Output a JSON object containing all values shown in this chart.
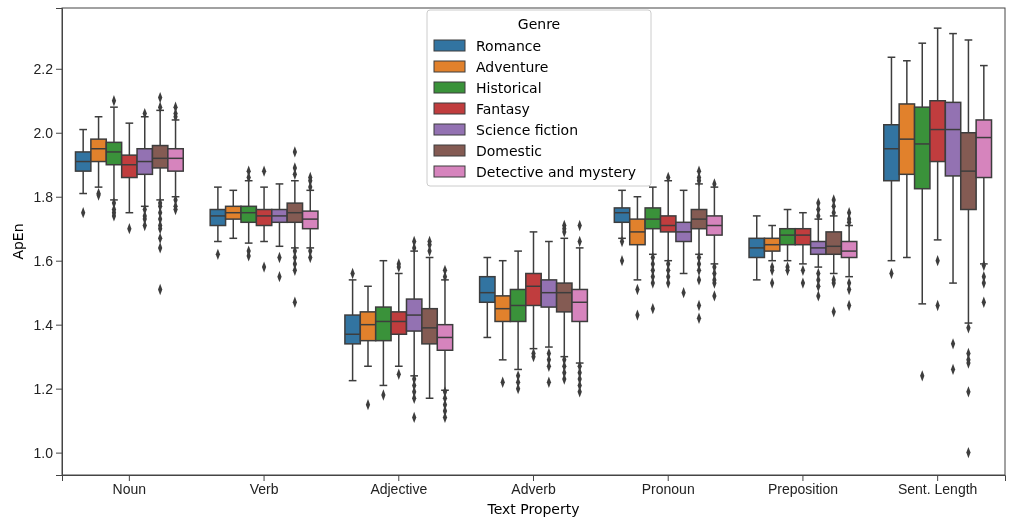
{
  "chart_data": {
    "type": "box",
    "xlabel": "Text Property",
    "ylabel": "ApEn",
    "legend_title": "Genre",
    "legend": "top",
    "marker": "diamond",
    "grid": false,
    "ylim": [
      0.93,
      2.39
    ],
    "yticks": [
      {
        "value": 1,
        "label": "1.0"
      },
      1.2,
      1.4,
      1.6,
      1.8,
      {
        "value": 2,
        "label": "2.0"
      },
      2.2
    ],
    "categories": [
      "Noun",
      "Verb",
      "Adjective",
      "Adverb",
      "Pronoun",
      "Preposition",
      "Sent. Length"
    ],
    "series": [
      {
        "name": "Romance",
        "color": "#3274a1",
        "boxes": [
          {
            "low": 1.81,
            "q1": 1.88,
            "median": 1.91,
            "q3": 1.94,
            "high": 2.01,
            "outliers": [
              1.75
            ]
          },
          {
            "low": 1.66,
            "q1": 1.71,
            "median": 1.74,
            "q3": 1.76,
            "high": 1.83,
            "outliers": [
              1.62
            ]
          },
          {
            "low": 1.225,
            "q1": 1.34,
            "median": 1.37,
            "q3": 1.43,
            "high": 1.54,
            "outliers": [
              1.56
            ]
          },
          {
            "low": 1.36,
            "q1": 1.47,
            "median": 1.5,
            "q3": 1.55,
            "high": 1.61
          },
          {
            "low": 1.67,
            "q1": 1.72,
            "median": 1.75,
            "q3": 1.765,
            "high": 1.82,
            "outliers": [
              1.66,
              1.6
            ]
          },
          {
            "low": 1.54,
            "q1": 1.61,
            "median": 1.64,
            "q3": 1.67,
            "high": 1.74
          },
          {
            "low": 1.6,
            "q1": 1.85,
            "median": 1.95,
            "q3": 2.025,
            "high": 2.236,
            "outliers": [
              1.56
            ]
          }
        ]
      },
      {
        "name": "Adventure",
        "color": "#e1812c",
        "boxes": [
          {
            "low": 1.83,
            "q1": 1.91,
            "median": 1.95,
            "q3": 1.98,
            "high": 2.05,
            "outliers": [
              1.81,
              1.805
            ]
          },
          {
            "low": 1.67,
            "q1": 1.73,
            "median": 1.75,
            "q3": 1.77,
            "high": 1.82
          },
          {
            "low": 1.27,
            "q1": 1.35,
            "median": 1.4,
            "q3": 1.44,
            "high": 1.52,
            "outliers": [
              1.15
            ]
          },
          {
            "low": 1.29,
            "q1": 1.41,
            "median": 1.45,
            "q3": 1.49,
            "high": 1.6,
            "outliers": [
              1.22
            ]
          },
          {
            "low": 1.54,
            "q1": 1.65,
            "median": 1.69,
            "q3": 1.73,
            "high": 1.8,
            "outliers": [
              1.51,
              1.43
            ]
          },
          {
            "low": 1.6,
            "q1": 1.63,
            "median": 1.65,
            "q3": 1.67,
            "high": 1.71,
            "outliers": [
              1.58,
              1.57,
              1.53
            ]
          },
          {
            "low": 1.61,
            "q1": 1.87,
            "median": 1.98,
            "q3": 2.09,
            "high": 2.225
          }
        ]
      },
      {
        "name": "Historical",
        "color": "#3a923a",
        "boxes": [
          {
            "low": 1.79,
            "q1": 1.9,
            "median": 1.94,
            "q3": 1.97,
            "high": 2.08,
            "outliers": [
              2.1,
              1.78,
              1.76,
              1.75,
              1.74
            ]
          },
          {
            "low": 1.655,
            "q1": 1.72,
            "median": 1.75,
            "q3": 1.77,
            "high": 1.85,
            "outliers": [
              1.88,
              1.86,
              1.63,
              1.615
            ]
          },
          {
            "low": 1.21,
            "q1": 1.35,
            "median": 1.41,
            "q3": 1.455,
            "high": 1.6,
            "outliers": [
              1.18
            ]
          },
          {
            "low": 1.26,
            "q1": 1.41,
            "median": 1.46,
            "q3": 1.51,
            "high": 1.63,
            "outliers": [
              1.24,
              1.22,
              1.2
            ]
          },
          {
            "low": 1.62,
            "q1": 1.7,
            "median": 1.73,
            "q3": 1.765,
            "high": 1.83,
            "outliers": [
              1.61,
              1.59,
              1.57,
              1.55,
              1.53,
              1.45
            ]
          },
          {
            "low": 1.6,
            "q1": 1.65,
            "median": 1.68,
            "q3": 1.7,
            "high": 1.76,
            "outliers": [
              1.58,
              1.57
            ]
          },
          {
            "low": 1.465,
            "q1": 1.825,
            "median": 1.965,
            "q3": 2.08,
            "high": 2.28,
            "outliers": [
              1.24
            ]
          }
        ]
      },
      {
        "name": "Fantasy",
        "color": "#c03d3e",
        "boxes": [
          {
            "low": 1.75,
            "q1": 1.86,
            "median": 1.9,
            "q3": 1.93,
            "high": 2.03,
            "outliers": [
              1.7
            ]
          },
          {
            "low": 1.66,
            "q1": 1.71,
            "median": 1.74,
            "q3": 1.76,
            "high": 1.83,
            "outliers": [
              1.88,
              1.58
            ]
          },
          {
            "low": 1.27,
            "q1": 1.37,
            "median": 1.41,
            "q3": 1.44,
            "high": 1.56,
            "outliers": [
              1.59,
              1.58,
              1.245
            ]
          },
          {
            "low": 1.325,
            "q1": 1.46,
            "median": 1.52,
            "q3": 1.56,
            "high": 1.69,
            "outliers": [
              1.31,
              1.3
            ]
          },
          {
            "low": 1.6,
            "q1": 1.69,
            "median": 1.71,
            "q3": 1.74,
            "high": 1.85,
            "outliers": [
              1.86,
              1.59,
              1.57,
              1.55,
              1.53
            ]
          },
          {
            "low": 1.59,
            "q1": 1.65,
            "median": 1.68,
            "q3": 1.7,
            "high": 1.75,
            "outliers": [
              1.57,
              1.53
            ]
          },
          {
            "low": 1.665,
            "q1": 1.91,
            "median": 2.01,
            "q3": 2.1,
            "high": 2.327,
            "outliers": [
              1.6,
              1.46
            ]
          }
        ]
      },
      {
        "name": "Science fiction",
        "color": "#9372b2",
        "boxes": [
          {
            "low": 1.77,
            "q1": 1.87,
            "median": 1.91,
            "q3": 1.95,
            "high": 2.05,
            "outliers": [
              2.06,
              1.76,
              1.74,
              1.73,
              1.71
            ]
          },
          {
            "low": 1.645,
            "q1": 1.72,
            "median": 1.74,
            "q3": 1.76,
            "high": 1.84,
            "outliers": [
              1.61,
              1.55
            ]
          },
          {
            "low": 1.24,
            "q1": 1.38,
            "median": 1.43,
            "q3": 1.48,
            "high": 1.63,
            "outliers": [
              1.66,
              1.64,
              1.23,
              1.21,
              1.19,
              1.17,
              1.11
            ]
          },
          {
            "low": 1.33,
            "q1": 1.455,
            "median": 1.5,
            "q3": 1.54,
            "high": 1.66,
            "outliers": [
              1.31,
              1.29,
              1.27,
              1.22
            ]
          },
          {
            "low": 1.56,
            "q1": 1.66,
            "median": 1.69,
            "q3": 1.72,
            "high": 1.82,
            "outliers": [
              1.5
            ]
          },
          {
            "low": 1.58,
            "q1": 1.62,
            "median": 1.64,
            "q3": 1.66,
            "high": 1.73,
            "outliers": [
              1.78,
              1.76,
              1.74,
              1.56,
              1.54,
              1.52,
              1.49
            ]
          },
          {
            "low": 1.53,
            "q1": 1.865,
            "median": 2.01,
            "q3": 2.095,
            "high": 2.31,
            "outliers": [
              1.34,
              1.26
            ]
          }
        ]
      },
      {
        "name": "Domestic",
        "color": "#845b53",
        "boxes": [
          {
            "low": 1.79,
            "q1": 1.89,
            "median": 1.92,
            "q3": 1.96,
            "high": 2.07,
            "outliers": [
              2.11,
              2.08,
              1.78,
              1.77,
              1.75,
              1.73,
              1.71,
              1.7,
              1.67,
              1.64,
              1.51
            ]
          },
          {
            "low": 1.64,
            "q1": 1.72,
            "median": 1.75,
            "q3": 1.78,
            "high": 1.85,
            "outliers": [
              1.94,
              1.89,
              1.87,
              1.63,
              1.61,
              1.59,
              1.57,
              1.47
            ]
          },
          {
            "low": 1.17,
            "q1": 1.34,
            "median": 1.39,
            "q3": 1.45,
            "high": 1.61,
            "outliers": [
              1.66,
              1.65,
              1.63
            ]
          },
          {
            "low": 1.3,
            "q1": 1.44,
            "median": 1.5,
            "q3": 1.53,
            "high": 1.67,
            "outliers": [
              1.71,
              1.7,
              1.69,
              1.29,
              1.27,
              1.25,
              1.23
            ]
          },
          {
            "low": 1.62,
            "q1": 1.7,
            "median": 1.73,
            "q3": 1.76,
            "high": 1.84,
            "outliers": [
              1.88,
              1.86,
              1.85,
              1.61,
              1.59,
              1.57,
              1.54,
              1.46,
              1.42
            ]
          },
          {
            "low": 1.56,
            "q1": 1.62,
            "median": 1.645,
            "q3": 1.69,
            "high": 1.74,
            "outliers": [
              1.79,
              1.77,
              1.75,
              1.54,
              1.53,
              1.44
            ]
          },
          {
            "low": 1.405,
            "q1": 1.76,
            "median": 1.88,
            "q3": 2.0,
            "high": 2.29,
            "outliers": [
              1.39,
              1.31,
              1.29,
              1.28,
              1.19,
              1.0
            ]
          }
        ]
      },
      {
        "name": "Detective and mystery",
        "color": "#d684bd",
        "boxes": [
          {
            "low": 1.8,
            "q1": 1.88,
            "median": 1.92,
            "q3": 1.95,
            "high": 2.04,
            "outliers": [
              2.08,
              2.06,
              2.05,
              1.79,
              1.77,
              1.76
            ]
          },
          {
            "low": 1.64,
            "q1": 1.7,
            "median": 1.73,
            "q3": 1.755,
            "high": 1.82,
            "outliers": [
              1.86,
              1.85,
              1.83,
              1.63,
              1.61
            ]
          },
          {
            "low": 1.195,
            "q1": 1.32,
            "median": 1.36,
            "q3": 1.4,
            "high": 1.54,
            "outliers": [
              1.57,
              1.55,
              1.19,
              1.17,
              1.15,
              1.13,
              1.11
            ]
          },
          {
            "low": 1.28,
            "q1": 1.41,
            "median": 1.47,
            "q3": 1.51,
            "high": 1.64,
            "outliers": [
              1.71,
              1.66,
              1.27,
              1.25,
              1.23,
              1.21,
              1.19
            ]
          },
          {
            "low": 1.59,
            "q1": 1.68,
            "median": 1.71,
            "q3": 1.74,
            "high": 1.83,
            "outliers": [
              1.84,
              1.58,
              1.56,
              1.54,
              1.53,
              1.49
            ]
          },
          {
            "low": 1.55,
            "q1": 1.61,
            "median": 1.63,
            "q3": 1.66,
            "high": 1.71,
            "outliers": [
              1.75,
              1.73,
              1.72,
              1.53,
              1.51,
              1.46
            ]
          },
          {
            "low": 1.59,
            "q1": 1.86,
            "median": 1.985,
            "q3": 2.04,
            "high": 2.21,
            "outliers": [
              1.585,
              1.55,
              1.53,
              1.47
            ]
          }
        ]
      }
    ]
  }
}
